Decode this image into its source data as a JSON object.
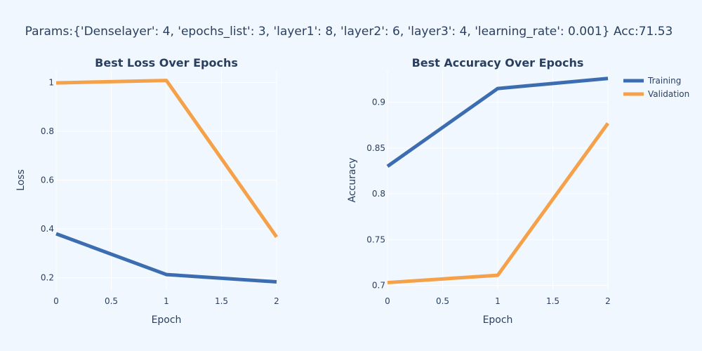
{
  "page_title": "Params:{'Denselayer': 4, 'epochs_list': 3, 'layer1': 8, 'layer2': 6, 'layer3': 4, 'learning_rate': 0.001} Acc:71.53",
  "colors": {
    "training": "#3d6db1",
    "validation": "#f5a14a",
    "background": "#f0f7fe",
    "text": "#2a3f5f"
  },
  "legend": {
    "placement": "top-right",
    "items": [
      {
        "name": "Training",
        "color": "#3d6db1"
      },
      {
        "name": "Validation",
        "color": "#f5a14a"
      }
    ]
  },
  "chart_data": [
    {
      "type": "line",
      "title": "Best Loss Over Epochs",
      "xlabel": "Epoch",
      "ylabel": "Loss",
      "xlim": [
        0,
        2
      ],
      "ylim": [
        0.15,
        1.05
      ],
      "grid": true,
      "x_ticks": [
        0,
        0.5,
        1,
        1.5,
        2
      ],
      "x_tick_labels": [
        "0",
        "0.5",
        "1",
        "1.5",
        "2"
      ],
      "y_ticks": [
        0.2,
        0.4,
        0.6,
        0.8,
        1
      ],
      "y_tick_labels": [
        "0.2",
        "0.4",
        "0.6",
        "0.8",
        "1"
      ],
      "x": [
        0,
        1,
        2
      ],
      "series": [
        {
          "name": "Training",
          "values": [
            0.38,
            0.213,
            0.183
          ]
        },
        {
          "name": "Validation",
          "values": [
            0.998,
            1.008,
            0.367
          ]
        }
      ]
    },
    {
      "type": "line",
      "title": "Best Accuracy Over Epochs",
      "xlabel": "Epoch",
      "ylabel": "Accuracy",
      "xlim": [
        0,
        2
      ],
      "ylim": [
        0.695,
        0.935
      ],
      "grid": true,
      "x_ticks": [
        0,
        0.5,
        1,
        1.5,
        2
      ],
      "x_tick_labels": [
        "0",
        "0.5",
        "1",
        "1.5",
        "2"
      ],
      "y_ticks": [
        0.7,
        0.75,
        0.8,
        0.85,
        0.9
      ],
      "y_tick_labels": [
        "0.7",
        "0.75",
        "0.8",
        "0.85",
        "0.9"
      ],
      "x": [
        0,
        1,
        2
      ],
      "series": [
        {
          "name": "Training",
          "values": [
            0.83,
            0.915,
            0.926
          ]
        },
        {
          "name": "Validation",
          "values": [
            0.703,
            0.711,
            0.877
          ]
        }
      ]
    }
  ]
}
